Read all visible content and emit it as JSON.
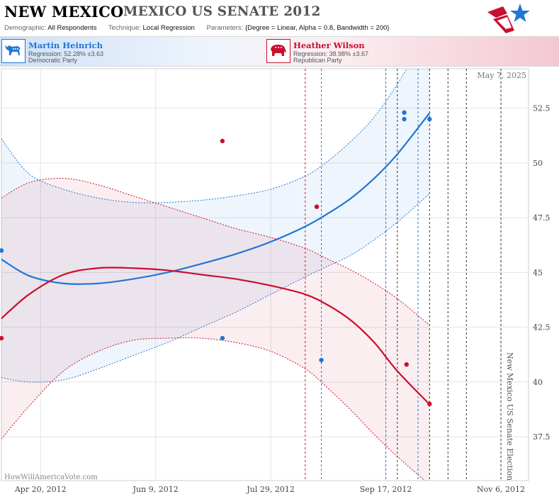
{
  "header": {
    "state": "NEW MEXICO",
    "race": "MEXICO US SENATE 2012",
    "demographic_label": "Demographic:",
    "demographic_value": "All Respondents",
    "technique_label": "Technique:",
    "technique_value": "Local Regression",
    "parameters_label": "Parameters:",
    "parameters_value": "{Degree = Linear, Alpha = 0.8, Bandwidth = 200}",
    "logo_icon": "star-flag-logo-icon"
  },
  "candidates": {
    "democrat": {
      "name": "Martin Heinrich",
      "regression": "Regression: 52.28% ±3.63",
      "party": "Democratic Party",
      "icon": "donkey-icon",
      "color": "#1f77d6"
    },
    "republican": {
      "name": "Heather Wilson",
      "regression": "Regression: 38.98% ±3.67",
      "party": "Republican Party",
      "icon": "elephant-icon",
      "color": "#c8102e"
    }
  },
  "chart": {
    "date_stamp": "May 7, 2025",
    "watermark": "HowWillAmericaVote.com",
    "election_label": "New Mexico US Senate Election"
  },
  "chart_data": {
    "type": "scatter",
    "title": "",
    "xlabel": "",
    "ylabel": "",
    "x_ticks": [
      "Apr 20, 2012",
      "Jun 9, 2012",
      "Jul 29, 2012",
      "Sep 17, 2012",
      "Nov 6, 2012"
    ],
    "x_tick_days": [
      0,
      50,
      100,
      150,
      200
    ],
    "xlim_days": [
      -17,
      212
    ],
    "y_ticks": [
      37.5,
      40,
      42.5,
      45,
      47.5,
      50,
      52.5
    ],
    "ylim": [
      35.5,
      54.3
    ],
    "grid": true,
    "series": [
      {
        "name": "Martin Heinrich",
        "party": "Democratic",
        "color": "#1f77d6",
        "polls_x_days": [
          -17,
          79,
          122,
          158,
          158,
          169
        ],
        "polls_y": [
          46,
          42,
          41,
          52.3,
          52,
          52
        ],
        "trend_x_days": [
          -17,
          -5,
          10,
          25,
          40,
          55,
          70,
          85,
          100,
          115,
          125,
          135,
          145,
          155,
          169
        ],
        "trend_y": [
          45.6,
          44.85,
          44.5,
          44.5,
          44.7,
          45.0,
          45.4,
          45.85,
          46.4,
          47.1,
          47.7,
          48.4,
          49.3,
          50.4,
          52.28
        ],
        "band_upper": [
          51.1,
          49.5,
          48.8,
          48.4,
          48.2,
          48.2,
          48.3,
          48.5,
          48.8,
          49.4,
          50.1,
          51.0,
          52.1,
          53.6,
          56.0
        ],
        "band_lower": [
          40.2,
          40.0,
          40.1,
          40.6,
          41.2,
          41.8,
          42.5,
          43.2,
          44.0,
          44.8,
          45.3,
          45.8,
          46.5,
          47.3,
          48.6
        ]
      },
      {
        "name": "Heather Wilson",
        "party": "Republican",
        "color": "#c8102e",
        "polls_x_days": [
          -17,
          79,
          120,
          159,
          169
        ],
        "polls_y": [
          42,
          51,
          48,
          40.8,
          39
        ],
        "trend_x_days": [
          -17,
          -5,
          10,
          25,
          40,
          55,
          70,
          85,
          100,
          115,
          125,
          135,
          145,
          155,
          169
        ],
        "trend_y": [
          42.9,
          44.0,
          44.9,
          45.2,
          45.2,
          45.1,
          44.9,
          44.7,
          44.4,
          44.0,
          43.5,
          42.8,
          41.8,
          40.5,
          38.98
        ],
        "band_upper": [
          48.4,
          49.1,
          49.3,
          49.0,
          48.5,
          48.0,
          47.5,
          47.0,
          46.6,
          46.1,
          45.6,
          45.1,
          44.5,
          43.8,
          42.6
        ],
        "band_lower": [
          37.4,
          38.9,
          40.5,
          41.4,
          41.9,
          42.0,
          42.0,
          41.8,
          41.4,
          40.6,
          39.7,
          38.7,
          37.6,
          36.6,
          35.3
        ]
      }
    ],
    "vertical_lines": [
      {
        "x_days": 115,
        "color": "#c8102e",
        "style": "dotted"
      },
      {
        "x_days": 122,
        "color": "#1f77d6",
        "style": "dotted"
      },
      {
        "x_days": 150,
        "color": "#1f77d6",
        "style": "dotted"
      },
      {
        "x_days": 155,
        "color": "#333333",
        "style": "dotted"
      },
      {
        "x_days": 164,
        "color": "#1f77d6",
        "style": "dotted"
      },
      {
        "x_days": 169,
        "color": "#333333",
        "style": "dotted"
      },
      {
        "x_days": 177,
        "color": "#333333",
        "style": "dotted"
      },
      {
        "x_days": 185,
        "color": "#333333",
        "style": "dotted"
      },
      {
        "x_days": 200,
        "color": "#333333",
        "style": "dotted"
      }
    ]
  }
}
